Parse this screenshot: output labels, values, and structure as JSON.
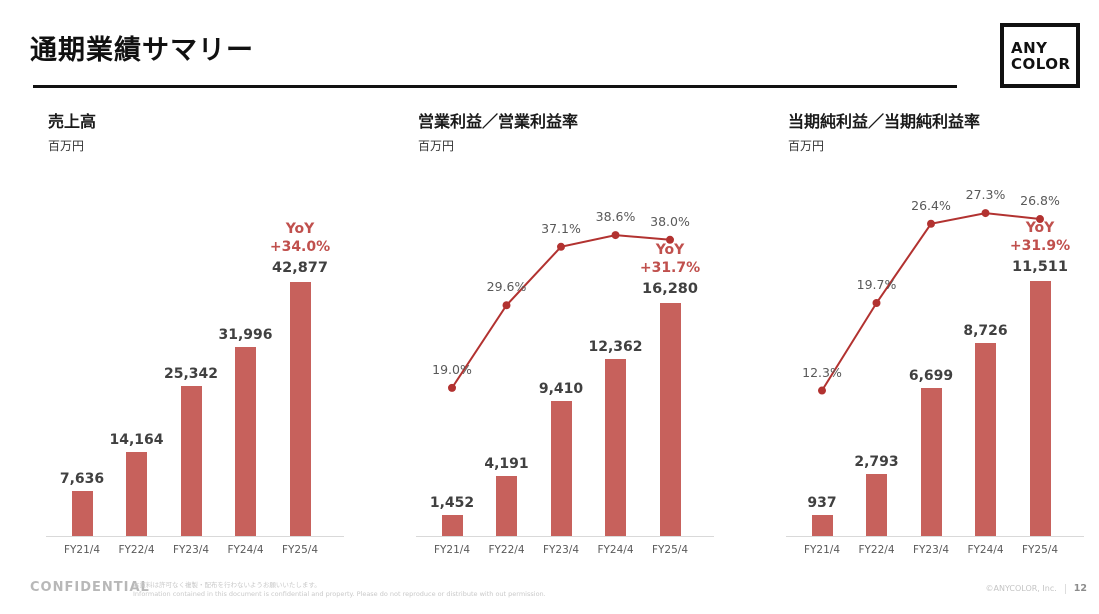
{
  "header": {
    "title": "通期業績サマリー",
    "logo_line1": "ANY",
    "logo_line2": "COLOR"
  },
  "chart_data": [
    {
      "type": "bar",
      "title": "売上高",
      "unit": "百万円",
      "categories": [
        "FY21/4",
        "FY22/4",
        "FY23/4",
        "FY24/4",
        "FY25/4"
      ],
      "values": [
        7636,
        14164,
        25342,
        31996,
        42877
      ],
      "value_labels": [
        "7,636",
        "14,164",
        "25,342",
        "31,996",
        "42,877"
      ],
      "yoy_label": "YoY",
      "yoy_value": "+34.0%",
      "ylim": [
        0,
        46000
      ],
      "grid": false,
      "legend": "none"
    },
    {
      "type": "bar+line",
      "title": "営業利益／営業利益率",
      "unit": "百万円",
      "categories": [
        "FY21/4",
        "FY22/4",
        "FY23/4",
        "FY24/4",
        "FY25/4"
      ],
      "values": [
        1452,
        4191,
        9410,
        12362,
        16280
      ],
      "value_labels": [
        "1,452",
        "4,191",
        "9,410",
        "12,362",
        "16,280"
      ],
      "line_series_name": "営業利益率",
      "line_values": [
        19.0,
        29.6,
        37.1,
        38.6,
        38.0
      ],
      "line_labels": [
        "19.0%",
        "29.6%",
        "37.1%",
        "38.6%",
        "38.0%"
      ],
      "yoy_label": "YoY",
      "yoy_value": "+31.7%",
      "ylim": [
        0,
        19000
      ],
      "line_ylim": [
        0,
        44
      ],
      "grid": false,
      "legend": "none"
    },
    {
      "type": "bar+line",
      "title": "当期純利益／当期純利益率",
      "unit": "百万円",
      "categories": [
        "FY21/4",
        "FY22/4",
        "FY23/4",
        "FY24/4",
        "FY25/4"
      ],
      "values": [
        937,
        2793,
        6699,
        8726,
        11511
      ],
      "value_labels": [
        "937",
        "2,793",
        "6,699",
        "8,726",
        "11,511"
      ],
      "line_series_name": "当期純利益率",
      "line_values": [
        12.3,
        19.7,
        26.4,
        27.3,
        26.8
      ],
      "line_labels": [
        "12.3%",
        "19.7%",
        "26.4%",
        "27.3%",
        "26.8%"
      ],
      "yoy_label": "YoY",
      "yoy_value": "+31.9%",
      "ylim": [
        0,
        12300
      ],
      "line_ylim": [
        0,
        29
      ],
      "grid": false,
      "legend": "none"
    }
  ],
  "colors": {
    "bar": "#C7615C",
    "line": "#B23230",
    "yoy_text": "#C0504D",
    "value_label": "#404040",
    "percent_label": "#595959",
    "axis_label": "#595959",
    "baseline": "#D9D9D9"
  },
  "footer": {
    "confidential": "CONFIDENTIAL",
    "disclaimer_jp": "本資料は許可なく複製・配布を行わないようお願いいたします。",
    "disclaimer_en": "Information contained in this document is confidential and property. Please do not reproduce or distribute with out permission.",
    "copyright": "©ANYCOLOR, Inc.",
    "page_number": "12"
  }
}
